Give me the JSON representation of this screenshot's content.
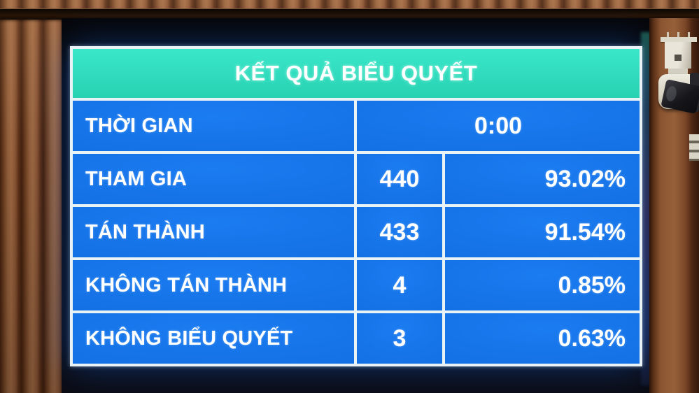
{
  "board": {
    "title": "KẾT QUẢ BIỂU QUYẾT",
    "time": {
      "label": "THỜI GIAN",
      "value": "0:00"
    },
    "rows": [
      {
        "label": "THAM GIA",
        "count": "440",
        "percent": "93.02%"
      },
      {
        "label": "TÁN THÀNH",
        "count": "433",
        "percent": "91.54%"
      },
      {
        "label": "KHÔNG TÁN THÀNH",
        "count": "4",
        "percent": "0.85%"
      },
      {
        "label": "KHÔNG BIỂU QUYẾT",
        "count": "3",
        "percent": "0.63%"
      }
    ],
    "colors": {
      "header_bg": "#2bd8b8",
      "row_bg": "#1170e6",
      "grid_border": "#e9f2f5",
      "text": "#ffffff",
      "screen_bg": "#09090d"
    }
  }
}
